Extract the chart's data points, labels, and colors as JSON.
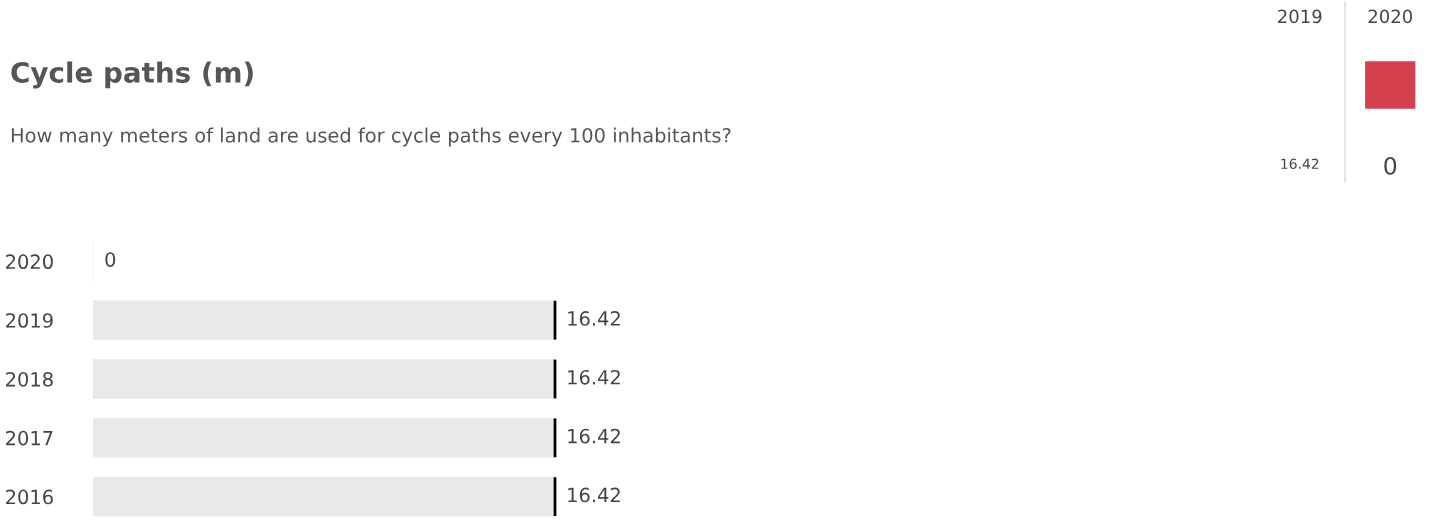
{
  "chart_data": [
    {
      "type": "bar",
      "orientation": "horizontal",
      "title": "Cycle paths (m)",
      "subtitle": "How many meters of land are used for cycle paths every 100 inhabitants?",
      "categories": [
        "2020",
        "2019",
        "2018",
        "2017",
        "2016"
      ],
      "values": [
        0,
        16.42,
        16.42,
        16.42,
        16.42
      ],
      "color": "#e8e9eb",
      "data_labels": true,
      "grid": false,
      "legend": false
    },
    {
      "type": "other",
      "categories": [
        "2019",
        "2020"
      ],
      "values": [
        16.42,
        0
      ],
      "colors": [
        null,
        "#d5404f"
      ],
      "data_labels": true
    }
  ]
}
